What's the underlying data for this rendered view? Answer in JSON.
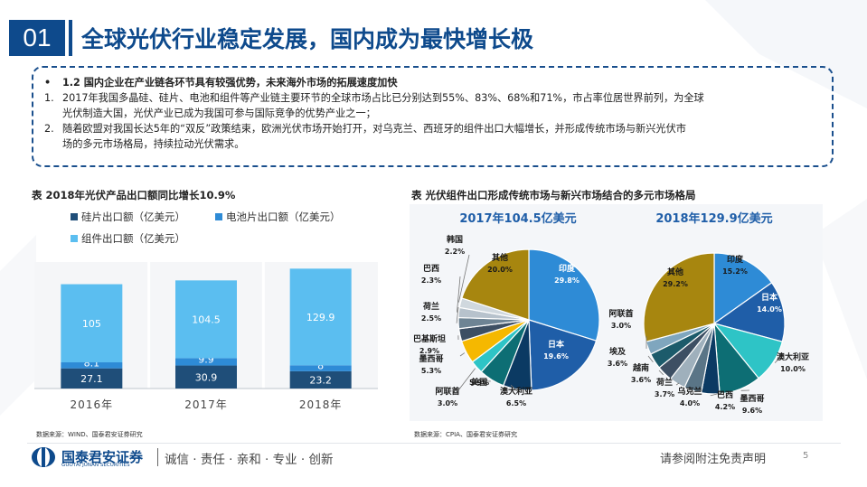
{
  "header": {
    "section_number": "01",
    "title": "全球光伏行业稳定发展，国内成为最快增长极"
  },
  "summary": {
    "bullet": "•",
    "heading": "1.2 国内企业在产业链各环节具有较强优势，未来海外市场的拓展速度加快",
    "items": [
      {
        "marker": "1.",
        "line1": "2017年我国多晶硅、硅片、电池和组件等产业链主要环节的全球市场占比已分别达到55%、83%、68%和71%，市占率位居世界前列，为全球",
        "line2": "光伏制造大国，光伏产业已成为我国可参与国际竞争的优势产业之一；"
      },
      {
        "marker": "2.",
        "line1": "随着欧盟对我国长达5年的“双反”政策结束，欧洲光伏市场开始打开，对乌克兰、西班牙的组件出口大幅增长，并形成传统市场与新兴光伏市",
        "line2": "场的多元市场格局，持续拉动光伏需求。"
      }
    ]
  },
  "left_panel": {
    "title": "表 2018年光伏产品出口额同比增长10.9%",
    "source": "数据来源：WIND、国泰君安证券研究"
  },
  "right_panel": {
    "title": "表 光伏组件出口形成传统市场与新兴市场结合的多元市场格局",
    "source": "数据来源：CPIA、国泰君安证券研究"
  },
  "footer": {
    "logo_cn": "国泰君安证券",
    "logo_en": "GUOTAI JUNAN SECURITIES",
    "slogan": "诚信 · 责任 · 亲和 · 专业 · 创新",
    "disclaimer": "请参阅附注免责声明",
    "page": "5"
  },
  "colors": {
    "brand_blue": "#0e4a8c",
    "dark_navy": "#1f4e79",
    "mid_blue": "#2e8bd6",
    "light_blue": "#5bbef0"
  },
  "chart_data": [
    {
      "type": "bar",
      "stacked": true,
      "categories": [
        "2016年",
        "2017年",
        "2018年"
      ],
      "series": [
        {
          "name": "硅片出口额（亿美元）",
          "values": [
            27.1,
            30.9,
            23.2
          ],
          "color": "#1f4e79"
        },
        {
          "name": "电池片出口额（亿美元）",
          "values": [
            8.1,
            9.9,
            8.0
          ],
          "color": "#2e8bd6"
        },
        {
          "name": "组件出口额（亿美元）",
          "values": [
            105,
            104.5,
            129.9
          ],
          "color": "#5bbef0"
        }
      ],
      "legend": "top",
      "ylim": [
        0,
        170
      ],
      "grid": false
    },
    {
      "type": "pie",
      "title": "2017年104.5亿美元",
      "slices": [
        {
          "label": "印度",
          "value": 29.8,
          "display": "29.8%",
          "color": "#2e8bd6"
        },
        {
          "label": "日本",
          "value": 19.6,
          "display": "19.6%",
          "color": "#1f5ea8"
        },
        {
          "label": "澳大利亚",
          "value": 6.5,
          "display": "6.5%",
          "color": "#0b3a63"
        },
        {
          "label": "美国",
          "value": 5.9,
          "display": "5.9%",
          "color": "#0d6e74"
        },
        {
          "label": "阿联酋",
          "value": 3.0,
          "display": "3.0%",
          "color": "#2ec4c6"
        },
        {
          "label": "墨西哥",
          "value": 5.3,
          "display": "5.3%",
          "color": "#f5b800"
        },
        {
          "label": "巴基斯坦",
          "value": 2.9,
          "display": "2.9%",
          "color": "#3d4f63"
        },
        {
          "label": "荷兰",
          "value": 2.5,
          "display": "2.5%",
          "color": "#6e8494"
        },
        {
          "label": "巴西",
          "value": 2.3,
          "display": "2.3%",
          "color": "#b7c2cc"
        },
        {
          "label": "韩国",
          "value": 2.2,
          "display": "2.2%",
          "color": "#d0d8de"
        },
        {
          "label": "其他",
          "value": 20.0,
          "display": "20.0%",
          "color": "#a7860f"
        }
      ]
    },
    {
      "type": "pie",
      "title": "2018年129.9亿美元",
      "slices": [
        {
          "label": "印度",
          "value": 15.2,
          "display": "15.2%",
          "color": "#2e8bd6"
        },
        {
          "label": "日本",
          "value": 14.0,
          "display": "14.0%",
          "color": "#1f5ea8"
        },
        {
          "label": "澳大利亚",
          "value": 10.0,
          "display": "10.0%",
          "color": "#2ec4c6"
        },
        {
          "label": "墨西哥",
          "value": 9.6,
          "display": "9.6%",
          "color": "#0d6e74"
        },
        {
          "label": "巴西",
          "value": 4.2,
          "display": "4.2%",
          "color": "#0b3a63"
        },
        {
          "label": "乌克兰",
          "value": 4.0,
          "display": "4.0%",
          "color": "#5a7587"
        },
        {
          "label": "荷兰",
          "value": 3.7,
          "display": "3.7%",
          "color": "#9fb0bc"
        },
        {
          "label": "越南",
          "value": 3.6,
          "display": "3.6%",
          "color": "#3d4f63"
        },
        {
          "label": "埃及",
          "value": 3.6,
          "display": "3.6%",
          "color": "#1c5b6b"
        },
        {
          "label": "阿联酋",
          "value": 3.0,
          "display": "3.0%",
          "color": "#7fa6be"
        },
        {
          "label": "其他",
          "value": 29.2,
          "display": "29.2%",
          "color": "#a7860f"
        }
      ]
    }
  ]
}
